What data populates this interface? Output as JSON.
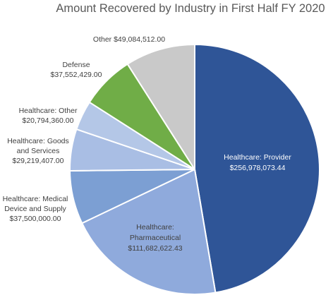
{
  "chart_data": {
    "type": "pie",
    "title": "Amount Recovered by Industry in First Half FY 2020",
    "slices": [
      {
        "name_lines": [
          "Healthcare: Provider"
        ],
        "value_text": "$256,978,073.44",
        "value": 256978073.44,
        "color": "#2F5597"
      },
      {
        "name_lines": [
          "Healthcare:",
          "Pharmaceutical"
        ],
        "value_text": "$111,682,622.43",
        "value": 111682622.43,
        "color": "#8FAADC"
      },
      {
        "name_lines": [
          "Healthcare: Medical",
          "Device and Supply"
        ],
        "value_text": "$37,500,000.00",
        "value": 37500000.0,
        "color": "#7C9FD3"
      },
      {
        "name_lines": [
          "Healthcare: Goods",
          "and Services"
        ],
        "value_text": "$29,219,407.00",
        "value": 29219407.0,
        "color": "#A9BEE4"
      },
      {
        "name_lines": [
          "Healthcare: Other"
        ],
        "value_text": "$20,794,360.00",
        "value": 20794360.0,
        "color": "#B4C7E7"
      },
      {
        "name_lines": [
          "Defense"
        ],
        "value_text": "$37,552,429.00",
        "value": 37552429.0,
        "color": "#70AD47"
      },
      {
        "name_lines": [
          "Other"
        ],
        "value_text": "$49,084,512.00",
        "value": 49084512.0,
        "color": "#C9C9C9"
      }
    ]
  }
}
